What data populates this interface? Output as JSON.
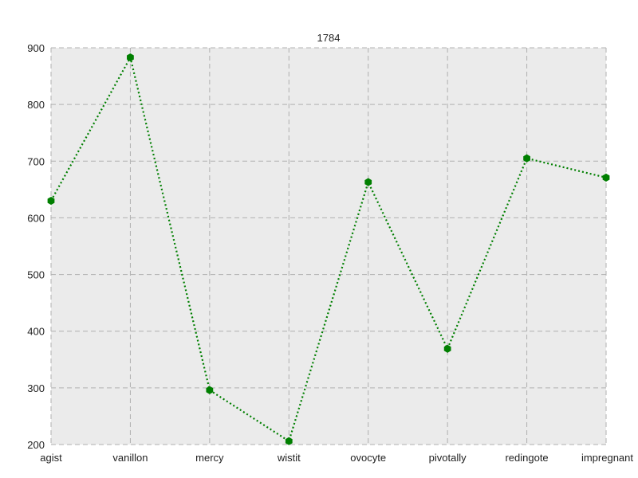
{
  "chart_data": {
    "type": "line",
    "title": "1784",
    "xlabel": "",
    "ylabel": "",
    "categories": [
      "agist",
      "vanillon",
      "mercy",
      "wistit",
      "ovocyte",
      "pivotally",
      "redingote",
      "impregnant"
    ],
    "series": [
      {
        "values": [
          630,
          883,
          296,
          206,
          663,
          369,
          705,
          671
        ]
      }
    ],
    "ylim": [
      200,
      900
    ],
    "yticks": [
      200,
      300,
      400,
      500,
      600,
      700,
      800,
      900
    ],
    "grid": true,
    "line_style": "dotted",
    "marker": "hexagon",
    "colors": {
      "series": "#007f00",
      "background": "#ebebeb",
      "grid": "#b0b0b0"
    }
  }
}
